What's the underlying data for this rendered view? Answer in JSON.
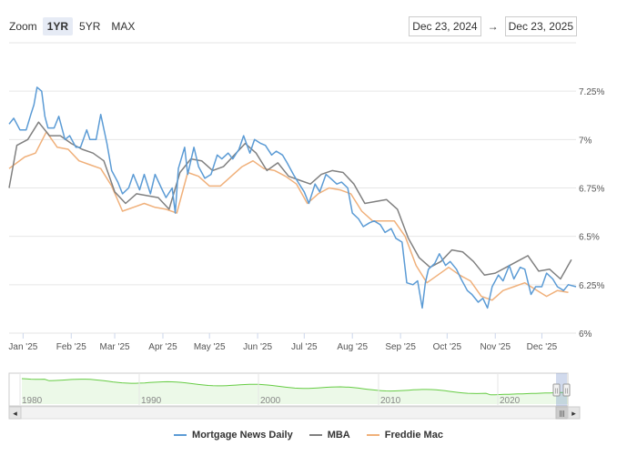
{
  "zoom": {
    "label": "Zoom",
    "buttons": [
      "1YR",
      "5YR",
      "MAX"
    ],
    "active": "1YR"
  },
  "range": {
    "from": "Dec 23, 2024",
    "arrow": "→",
    "to": "Dec 23, 2025"
  },
  "colors": {
    "mnd": "#5b9bd5",
    "mba": "#808080",
    "freddie": "#f0b07a",
    "navigator": "#66cc44",
    "grid": "#e6e6e6"
  },
  "chart_data": {
    "type": "line",
    "title": "",
    "xlabel": "",
    "ylabel": "",
    "x_ticks": [
      "Jan '25",
      "Feb '25",
      "Mar '25",
      "Apr '25",
      "May '25",
      "Jun '25",
      "Jul '25",
      "Aug '25",
      "Sep '25",
      "Oct '25",
      "Nov '25",
      "Dec '25"
    ],
    "y_ticks": [
      "7.25%",
      "7%",
      "6.75%",
      "6.5%",
      "6.25%",
      "6%"
    ],
    "ylim": [
      6.0,
      7.5
    ],
    "grid": true,
    "legend_position": "bottom",
    "series": [
      {
        "name": "Mortgage News Daily",
        "key": "mnd",
        "points": [
          [
            "2024-12-23",
            7.08
          ],
          [
            "2024-12-26",
            7.11
          ],
          [
            "2024-12-30",
            7.05
          ],
          [
            "2025-01-03",
            7.05
          ],
          [
            "2025-01-06",
            7.13
          ],
          [
            "2025-01-08",
            7.18
          ],
          [
            "2025-01-10",
            7.27
          ],
          [
            "2025-01-13",
            7.25
          ],
          [
            "2025-01-15",
            7.12
          ],
          [
            "2025-01-17",
            7.06
          ],
          [
            "2025-01-21",
            7.06
          ],
          [
            "2025-01-24",
            7.12
          ],
          [
            "2025-01-28",
            7.0
          ],
          [
            "2025-01-31",
            7.02
          ],
          [
            "2025-02-04",
            6.96
          ],
          [
            "2025-02-07",
            6.96
          ],
          [
            "2025-02-11",
            7.05
          ],
          [
            "2025-02-13",
            7.0
          ],
          [
            "2025-02-17",
            7.0
          ],
          [
            "2025-02-20",
            7.13
          ],
          [
            "2025-02-24",
            6.98
          ],
          [
            "2025-02-27",
            6.84
          ],
          [
            "2025-03-03",
            6.78
          ],
          [
            "2025-03-06",
            6.72
          ],
          [
            "2025-03-10",
            6.75
          ],
          [
            "2025-03-13",
            6.82
          ],
          [
            "2025-03-17",
            6.74
          ],
          [
            "2025-03-20",
            6.82
          ],
          [
            "2025-03-24",
            6.72
          ],
          [
            "2025-03-27",
            6.82
          ],
          [
            "2025-03-31",
            6.75
          ],
          [
            "2025-04-03",
            6.7
          ],
          [
            "2025-04-07",
            6.75
          ],
          [
            "2025-04-09",
            6.62
          ],
          [
            "2025-04-11",
            6.85
          ],
          [
            "2025-04-15",
            6.96
          ],
          [
            "2025-04-17",
            6.82
          ],
          [
            "2025-04-21",
            6.96
          ],
          [
            "2025-04-24",
            6.86
          ],
          [
            "2025-04-28",
            6.8
          ],
          [
            "2025-05-02",
            6.82
          ],
          [
            "2025-05-06",
            6.92
          ],
          [
            "2025-05-09",
            6.9
          ],
          [
            "2025-05-13",
            6.93
          ],
          [
            "2025-05-16",
            6.9
          ],
          [
            "2025-05-20",
            6.95
          ],
          [
            "2025-05-23",
            7.02
          ],
          [
            "2025-05-27",
            6.93
          ],
          [
            "2025-05-30",
            7.0
          ],
          [
            "2025-06-03",
            6.98
          ],
          [
            "2025-06-06",
            6.97
          ],
          [
            "2025-06-10",
            6.92
          ],
          [
            "2025-06-13",
            6.94
          ],
          [
            "2025-06-17",
            6.92
          ],
          [
            "2025-06-20",
            6.88
          ],
          [
            "2025-06-24",
            6.82
          ],
          [
            "2025-06-27",
            6.78
          ],
          [
            "2025-07-01",
            6.73
          ],
          [
            "2025-07-04",
            6.67
          ],
          [
            "2025-07-08",
            6.77
          ],
          [
            "2025-07-11",
            6.73
          ],
          [
            "2025-07-15",
            6.82
          ],
          [
            "2025-07-18",
            6.8
          ],
          [
            "2025-07-22",
            6.77
          ],
          [
            "2025-07-25",
            6.78
          ],
          [
            "2025-07-29",
            6.75
          ],
          [
            "2025-08-01",
            6.62
          ],
          [
            "2025-08-05",
            6.59
          ],
          [
            "2025-08-08",
            6.55
          ],
          [
            "2025-08-12",
            6.57
          ],
          [
            "2025-08-15",
            6.58
          ],
          [
            "2025-08-19",
            6.56
          ],
          [
            "2025-08-22",
            6.52
          ],
          [
            "2025-08-26",
            6.54
          ],
          [
            "2025-08-29",
            6.49
          ],
          [
            "2025-09-02",
            6.47
          ],
          [
            "2025-09-05",
            6.26
          ],
          [
            "2025-09-09",
            6.25
          ],
          [
            "2025-09-12",
            6.27
          ],
          [
            "2025-09-15",
            6.13
          ],
          [
            "2025-09-17",
            6.26
          ],
          [
            "2025-09-19",
            6.33
          ],
          [
            "2025-09-23",
            6.36
          ],
          [
            "2025-09-26",
            6.41
          ],
          [
            "2025-09-30",
            6.35
          ],
          [
            "2025-10-03",
            6.37
          ],
          [
            "2025-10-07",
            6.33
          ],
          [
            "2025-10-10",
            6.28
          ],
          [
            "2025-10-14",
            6.22
          ],
          [
            "2025-10-17",
            6.2
          ],
          [
            "2025-10-21",
            6.16
          ],
          [
            "2025-10-24",
            6.18
          ],
          [
            "2025-10-27",
            6.13
          ],
          [
            "2025-10-30",
            6.24
          ],
          [
            "2025-11-03",
            6.3
          ],
          [
            "2025-11-06",
            6.27
          ],
          [
            "2025-11-10",
            6.35
          ],
          [
            "2025-11-13",
            6.28
          ],
          [
            "2025-11-17",
            6.34
          ],
          [
            "2025-11-20",
            6.33
          ],
          [
            "2025-11-24",
            6.2
          ],
          [
            "2025-11-27",
            6.24
          ],
          [
            "2025-12-01",
            6.24
          ],
          [
            "2025-12-04",
            6.31
          ],
          [
            "2025-12-08",
            6.28
          ],
          [
            "2025-12-11",
            6.24
          ],
          [
            "2025-12-15",
            6.22
          ],
          [
            "2025-12-18",
            6.25
          ],
          [
            "2025-12-23",
            6.24
          ]
        ]
      },
      {
        "name": "MBA",
        "key": "mba",
        "points": [
          [
            "2024-12-23",
            6.75
          ],
          [
            "2024-12-28",
            6.97
          ],
          [
            "2025-01-04",
            7.0
          ],
          [
            "2025-01-11",
            7.09
          ],
          [
            "2025-01-18",
            7.02
          ],
          [
            "2025-01-25",
            7.02
          ],
          [
            "2025-02-01",
            6.98
          ],
          [
            "2025-02-08",
            6.95
          ],
          [
            "2025-02-15",
            6.93
          ],
          [
            "2025-02-22",
            6.89
          ],
          [
            "2025-03-01",
            6.73
          ],
          [
            "2025-03-08",
            6.67
          ],
          [
            "2025-03-15",
            6.72
          ],
          [
            "2025-03-22",
            6.71
          ],
          [
            "2025-03-29",
            6.7
          ],
          [
            "2025-04-05",
            6.64
          ],
          [
            "2025-04-12",
            6.83
          ],
          [
            "2025-04-19",
            6.9
          ],
          [
            "2025-04-26",
            6.89
          ],
          [
            "2025-05-03",
            6.84
          ],
          [
            "2025-05-10",
            6.86
          ],
          [
            "2025-05-17",
            6.92
          ],
          [
            "2025-05-24",
            6.98
          ],
          [
            "2025-05-31",
            6.93
          ],
          [
            "2025-06-07",
            6.84
          ],
          [
            "2025-06-14",
            6.88
          ],
          [
            "2025-06-21",
            6.81
          ],
          [
            "2025-06-28",
            6.79
          ],
          [
            "2025-07-05",
            6.77
          ],
          [
            "2025-07-12",
            6.82
          ],
          [
            "2025-07-19",
            6.84
          ],
          [
            "2025-07-26",
            6.83
          ],
          [
            "2025-08-02",
            6.77
          ],
          [
            "2025-08-09",
            6.67
          ],
          [
            "2025-08-16",
            6.68
          ],
          [
            "2025-08-23",
            6.69
          ],
          [
            "2025-08-30",
            6.64
          ],
          [
            "2025-09-06",
            6.49
          ],
          [
            "2025-09-13",
            6.39
          ],
          [
            "2025-09-20",
            6.34
          ],
          [
            "2025-09-27",
            6.37
          ],
          [
            "2025-10-04",
            6.43
          ],
          [
            "2025-10-11",
            6.42
          ],
          [
            "2025-10-18",
            6.37
          ],
          [
            "2025-10-25",
            6.3
          ],
          [
            "2025-11-01",
            6.31
          ],
          [
            "2025-11-08",
            6.34
          ],
          [
            "2025-11-15",
            6.37
          ],
          [
            "2025-11-22",
            6.4
          ],
          [
            "2025-11-29",
            6.32
          ],
          [
            "2025-12-06",
            6.33
          ],
          [
            "2025-12-13",
            6.28
          ],
          [
            "2025-12-20",
            6.38
          ]
        ]
      },
      {
        "name": "Freddie Mac",
        "key": "freddie",
        "points": [
          [
            "2024-12-23",
            6.85
          ],
          [
            "2025-01-02",
            6.91
          ],
          [
            "2025-01-09",
            6.93
          ],
          [
            "2025-01-16",
            7.04
          ],
          [
            "2025-01-23",
            6.96
          ],
          [
            "2025-01-30",
            6.95
          ],
          [
            "2025-02-06",
            6.89
          ],
          [
            "2025-02-13",
            6.87
          ],
          [
            "2025-02-20",
            6.85
          ],
          [
            "2025-02-27",
            6.76
          ],
          [
            "2025-03-06",
            6.63
          ],
          [
            "2025-03-13",
            6.65
          ],
          [
            "2025-03-20",
            6.67
          ],
          [
            "2025-03-27",
            6.65
          ],
          [
            "2025-04-03",
            6.64
          ],
          [
            "2025-04-10",
            6.62
          ],
          [
            "2025-04-17",
            6.83
          ],
          [
            "2025-04-24",
            6.81
          ],
          [
            "2025-05-01",
            6.76
          ],
          [
            "2025-05-08",
            6.76
          ],
          [
            "2025-05-15",
            6.81
          ],
          [
            "2025-05-22",
            6.86
          ],
          [
            "2025-05-29",
            6.89
          ],
          [
            "2025-06-05",
            6.85
          ],
          [
            "2025-06-12",
            6.84
          ],
          [
            "2025-06-19",
            6.81
          ],
          [
            "2025-06-26",
            6.77
          ],
          [
            "2025-07-03",
            6.67
          ],
          [
            "2025-07-10",
            6.72
          ],
          [
            "2025-07-17",
            6.75
          ],
          [
            "2025-07-24",
            6.74
          ],
          [
            "2025-07-31",
            6.72
          ],
          [
            "2025-08-07",
            6.63
          ],
          [
            "2025-08-14",
            6.58
          ],
          [
            "2025-08-21",
            6.58
          ],
          [
            "2025-08-28",
            6.58
          ],
          [
            "2025-09-04",
            6.5
          ],
          [
            "2025-09-11",
            6.35
          ],
          [
            "2025-09-18",
            6.26
          ],
          [
            "2025-09-25",
            6.3
          ],
          [
            "2025-10-02",
            6.34
          ],
          [
            "2025-10-09",
            6.3
          ],
          [
            "2025-10-16",
            6.27
          ],
          [
            "2025-10-23",
            6.19
          ],
          [
            "2025-10-30",
            6.17
          ],
          [
            "2025-11-06",
            6.22
          ],
          [
            "2025-11-13",
            6.24
          ],
          [
            "2025-11-20",
            6.26
          ],
          [
            "2025-11-26",
            6.23
          ],
          [
            "2025-12-04",
            6.19
          ],
          [
            "2025-12-11",
            6.22
          ],
          [
            "2025-12-18",
            6.21
          ]
        ]
      }
    ]
  },
  "navigator": {
    "ticks": [
      "1980",
      "1990",
      "2000",
      "2010",
      "2020"
    ],
    "scroll_left": "◂",
    "scroll_right": "▸",
    "thumb_grip": "|||",
    "handle_grip": "||"
  }
}
